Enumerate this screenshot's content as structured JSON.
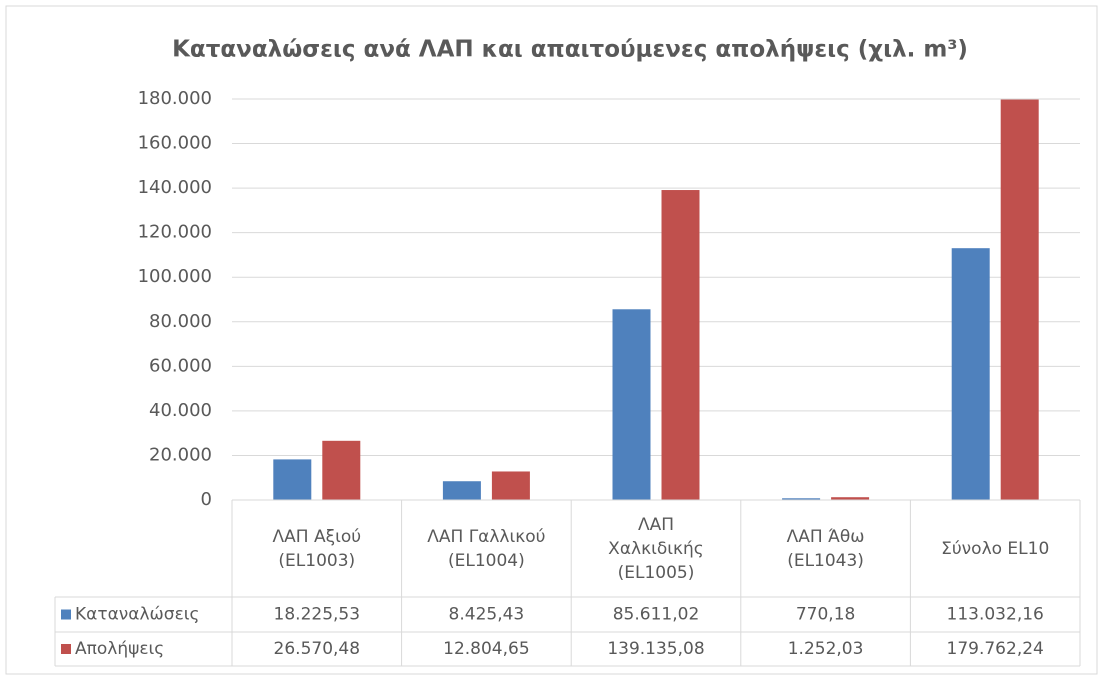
{
  "chart_data": {
    "type": "bar",
    "title": "Καταναλώσεις ανά ΛΑΠ και απαιτούμενες απολήψεις (χιλ. m³)",
    "categories": [
      "ΛΑΠ Αξιού\n(EL1003)",
      "ΛΑΠ Γαλλικού\n(EL1004)",
      "ΛΑΠ\nΧαλκιδικής\n(EL1005)",
      "ΛΑΠ Άθω\n(EL1043)",
      "Σύνολο EL10"
    ],
    "series": [
      {
        "name": "Καταναλώσεις",
        "color": "#4f81bd",
        "values": [
          18225.53,
          8425.43,
          85611.02,
          770.18,
          113032.16
        ],
        "value_labels": [
          "18.225,53",
          "8.425,43",
          "85.611,02",
          "770,18",
          "113.032,16"
        ]
      },
      {
        "name": "Απολήψεις",
        "color": "#c0504d",
        "values": [
          26570.48,
          12804.65,
          139135.08,
          1252.03,
          179762.24
        ],
        "value_labels": [
          "26.570,48",
          "12.804,65",
          "139.135,08",
          "1.252,03",
          "179.762,24"
        ]
      }
    ],
    "ylim": [
      0,
      180000
    ],
    "yticks": [
      0,
      {
        "value": 20000,
        "label": "20.000"
      },
      {
        "value": 40000,
        "label": "40.000"
      },
      {
        "value": 60000,
        "label": "60.000"
      },
      {
        "value": 80000,
        "label": "80.000"
      },
      {
        "value": 100000,
        "label": "100.000"
      },
      {
        "value": 120000,
        "label": "120.000"
      },
      {
        "value": 140000,
        "label": "140.000"
      },
      {
        "value": 160000,
        "label": "160.000"
      },
      {
        "value": 180000,
        "label": "180.000"
      }
    ],
    "grid": true,
    "data_table": true
  }
}
